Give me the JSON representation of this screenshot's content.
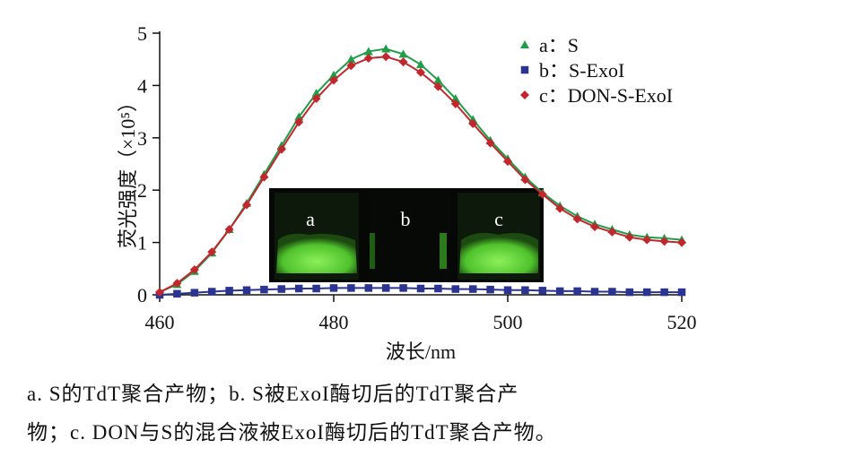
{
  "chart_data": {
    "type": "line",
    "ylabel": "荧光强度（×10⁵）",
    "xlabel": "波长/nm",
    "x": [
      460,
      462,
      464,
      466,
      468,
      470,
      472,
      474,
      476,
      478,
      480,
      482,
      484,
      486,
      488,
      490,
      492,
      494,
      496,
      498,
      500,
      502,
      504,
      506,
      508,
      510,
      512,
      514,
      516,
      518,
      520
    ],
    "series": [
      {
        "name": "a：S",
        "color": "#1f9e48",
        "marker": "triangle",
        "values": [
          0.05,
          0.2,
          0.45,
          0.8,
          1.25,
          1.75,
          2.3,
          2.85,
          3.4,
          3.85,
          4.2,
          4.5,
          4.65,
          4.7,
          4.6,
          4.4,
          4.1,
          3.75,
          3.35,
          2.95,
          2.6,
          2.25,
          1.95,
          1.7,
          1.5,
          1.35,
          1.25,
          1.15,
          1.1,
          1.08,
          1.05
        ]
      },
      {
        "name": "b：S-ExoI",
        "color": "#2b3591",
        "marker": "square",
        "values": [
          0.0,
          0.02,
          0.04,
          0.06,
          0.08,
          0.09,
          0.1,
          0.11,
          0.12,
          0.12,
          0.13,
          0.13,
          0.13,
          0.13,
          0.13,
          0.12,
          0.12,
          0.11,
          0.11,
          0.1,
          0.09,
          0.09,
          0.08,
          0.07,
          0.07,
          0.06,
          0.06,
          0.05,
          0.05,
          0.05,
          0.05
        ]
      },
      {
        "name": "c：DON-S-ExoI",
        "color": "#c1272d",
        "marker": "diamond",
        "values": [
          0.05,
          0.22,
          0.48,
          0.82,
          1.25,
          1.72,
          2.25,
          2.78,
          3.3,
          3.75,
          4.1,
          4.38,
          4.52,
          4.55,
          4.45,
          4.25,
          3.98,
          3.65,
          3.27,
          2.9,
          2.55,
          2.2,
          1.92,
          1.65,
          1.45,
          1.3,
          1.2,
          1.1,
          1.05,
          1.02,
          1.0
        ]
      }
    ],
    "xlim": [
      460,
      520
    ],
    "xticks": [
      460,
      480,
      500,
      520
    ],
    "ylim": [
      0,
      5
    ],
    "yticks": [
      0,
      1,
      2,
      3,
      4,
      5
    ],
    "legend": "upper right",
    "inset_labels": [
      "a",
      "b",
      "c"
    ],
    "caption": [
      "a. S的TdT聚合产物；b. S被ExoI酶切后的TdT聚合产",
      "物；c. DON与S的混合液被ExoI酶切后的TdT聚合产物。"
    ]
  }
}
